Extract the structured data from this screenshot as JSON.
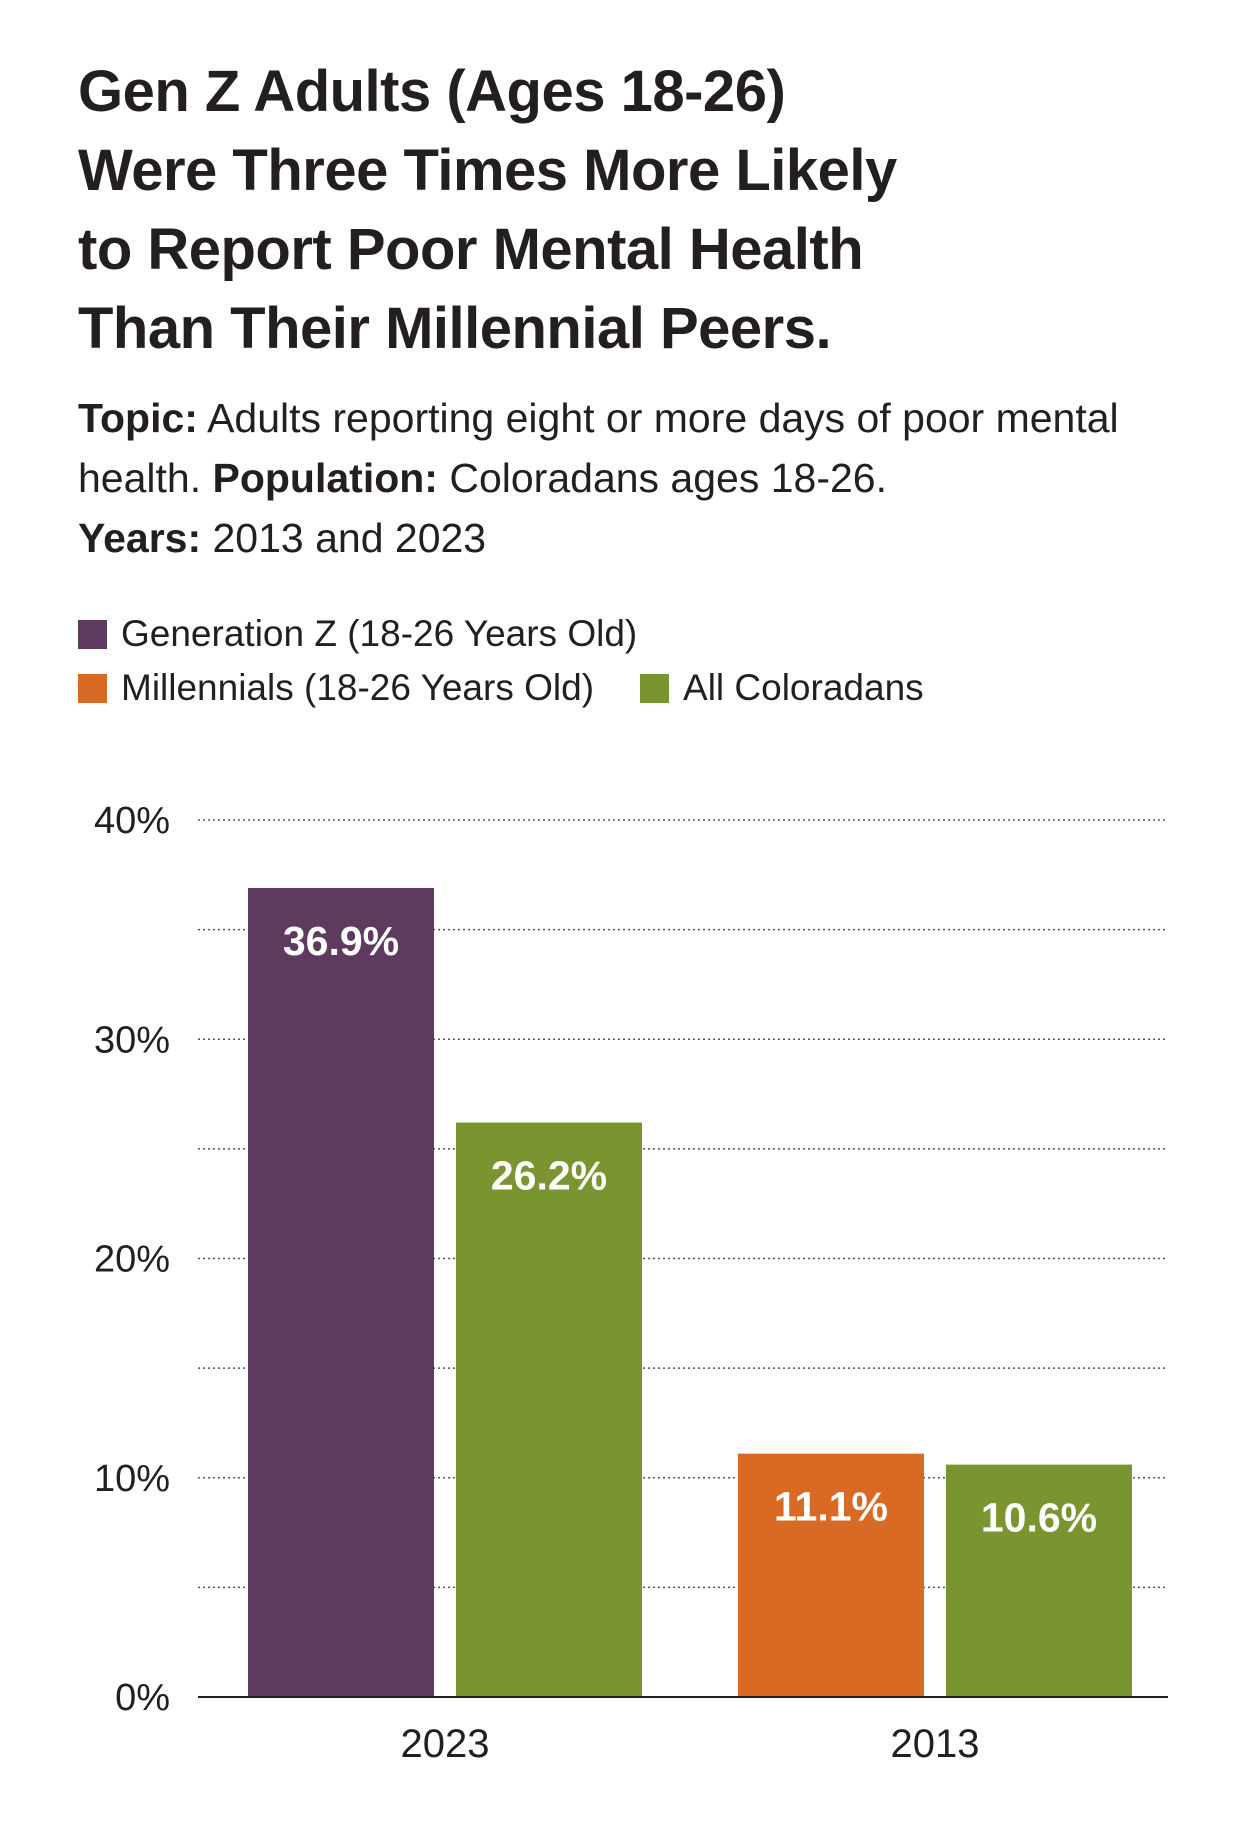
{
  "title_lines": [
    "Gen Z Adults (Ages 18-26)",
    "Were Three Times More Likely",
    "to Report Poor Mental Health",
    "Than Their Millennial Peers."
  ],
  "subtitle": {
    "topic_label": "Topic:",
    "topic_text": " Adults reporting eight or more days of poor mental health. ",
    "population_label": "Population:",
    "population_text": " Coloradans ages 18-26.",
    "years_label": "Years:",
    "years_text": " 2013 and 2023"
  },
  "legend": [
    {
      "label": "Generation Z (18-26 Years Old)",
      "color": "#5e3a5f"
    },
    {
      "label": "Millennials (18-26 Years Old)",
      "color": "#d86a23"
    },
    {
      "label": "All Coloradans",
      "color": "#7a9430"
    }
  ],
  "chart_data": {
    "type": "bar",
    "categories": [
      "2023",
      "2013"
    ],
    "bars": [
      {
        "category": "2023",
        "series": "Generation Z (18-26 Years Old)",
        "value": 36.9,
        "label": "36.9%",
        "color": "#5e3a5f"
      },
      {
        "category": "2023",
        "series": "All Coloradans",
        "value": 26.2,
        "label": "26.2%",
        "color": "#7a9430"
      },
      {
        "category": "2013",
        "series": "Millennials (18-26 Years Old)",
        "value": 11.1,
        "label": "11.1%",
        "color": "#d86a23"
      },
      {
        "category": "2013",
        "series": "All Coloradans",
        "value": 10.6,
        "label": "10.6%",
        "color": "#7a9430"
      }
    ],
    "yticks": [
      "0%",
      "10%",
      "20%",
      "30%",
      "40%"
    ],
    "ytick_values": [
      0,
      10,
      20,
      30,
      40
    ],
    "ylim": [
      0,
      40
    ],
    "minor_gridlines": [
      5,
      15,
      25,
      35
    ],
    "grid": "dotted",
    "legend_position": "top-left"
  }
}
